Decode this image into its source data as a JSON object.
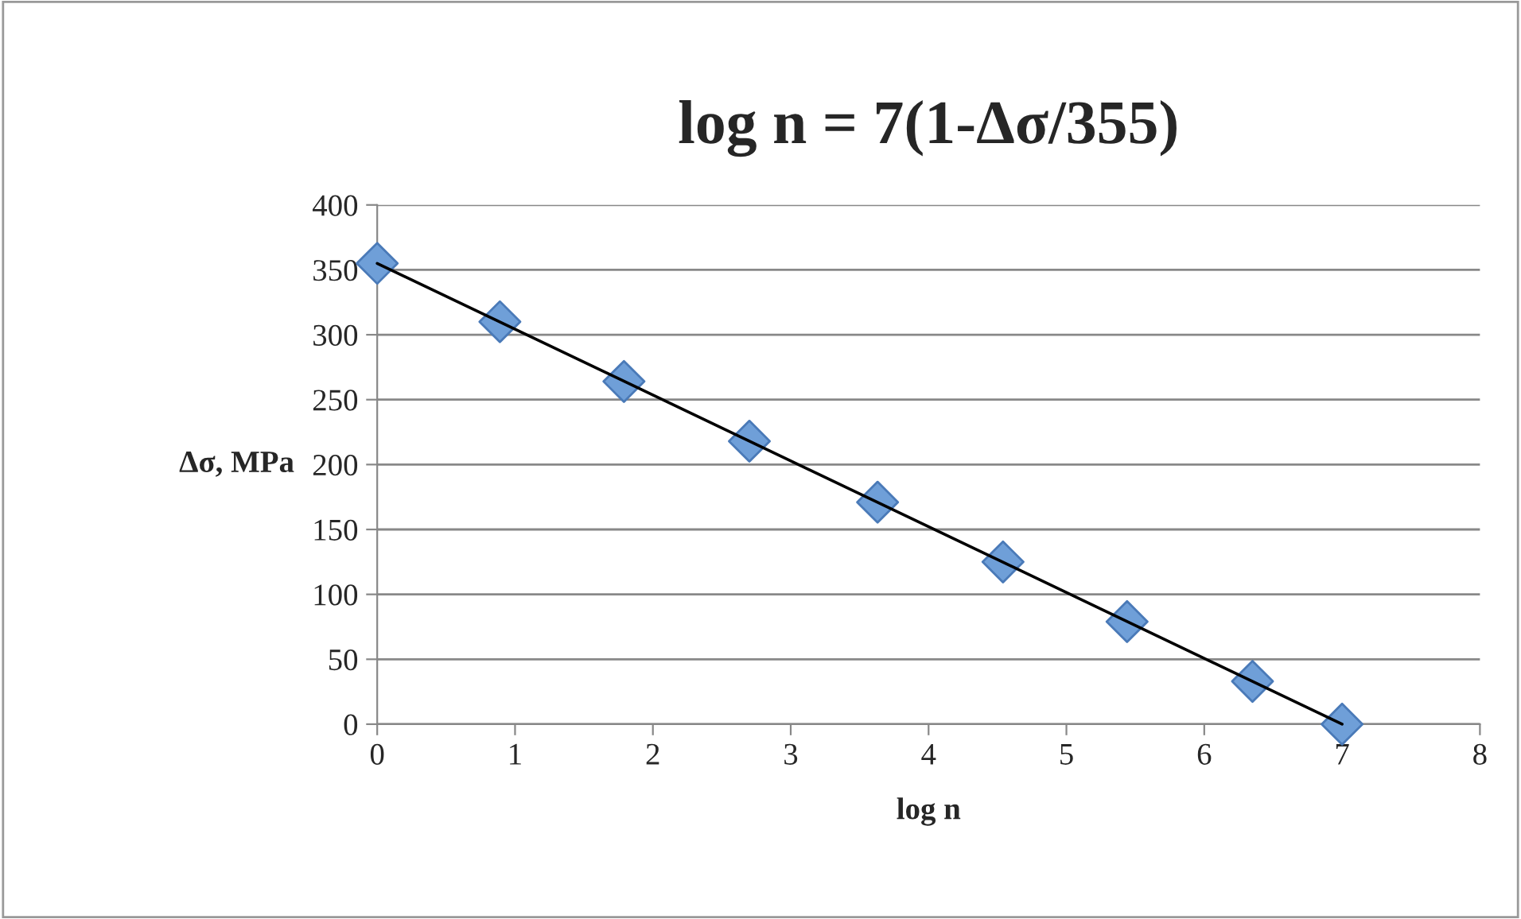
{
  "chart_data": {
    "type": "scatter",
    "title": "log n = 7(1-Δσ/355)",
    "xlabel": "log n",
    "ylabel": "Δσ, MPa",
    "series": [
      {
        "color": "#6f9fd8",
        "marker": "diamond",
        "x": [
          0,
          0.89,
          1.79,
          2.7,
          3.63,
          4.54,
          5.44,
          6.35,
          7
        ],
        "values": [
          355,
          310,
          264,
          218,
          171,
          125,
          79,
          33,
          0
        ]
      },
      {
        "type": "line",
        "color": "#000000",
        "marker": "none",
        "x": [
          0,
          7
        ],
        "values": [
          355,
          0
        ]
      }
    ],
    "xlim": [
      0,
      8
    ],
    "xticks": [
      0,
      1,
      2,
      3,
      4,
      5,
      6,
      7,
      8
    ],
    "ylim": [
      0,
      400
    ],
    "yticks": [
      0,
      50,
      100,
      150,
      200,
      250,
      300,
      350,
      400
    ],
    "grid": "y",
    "legend": false
  }
}
